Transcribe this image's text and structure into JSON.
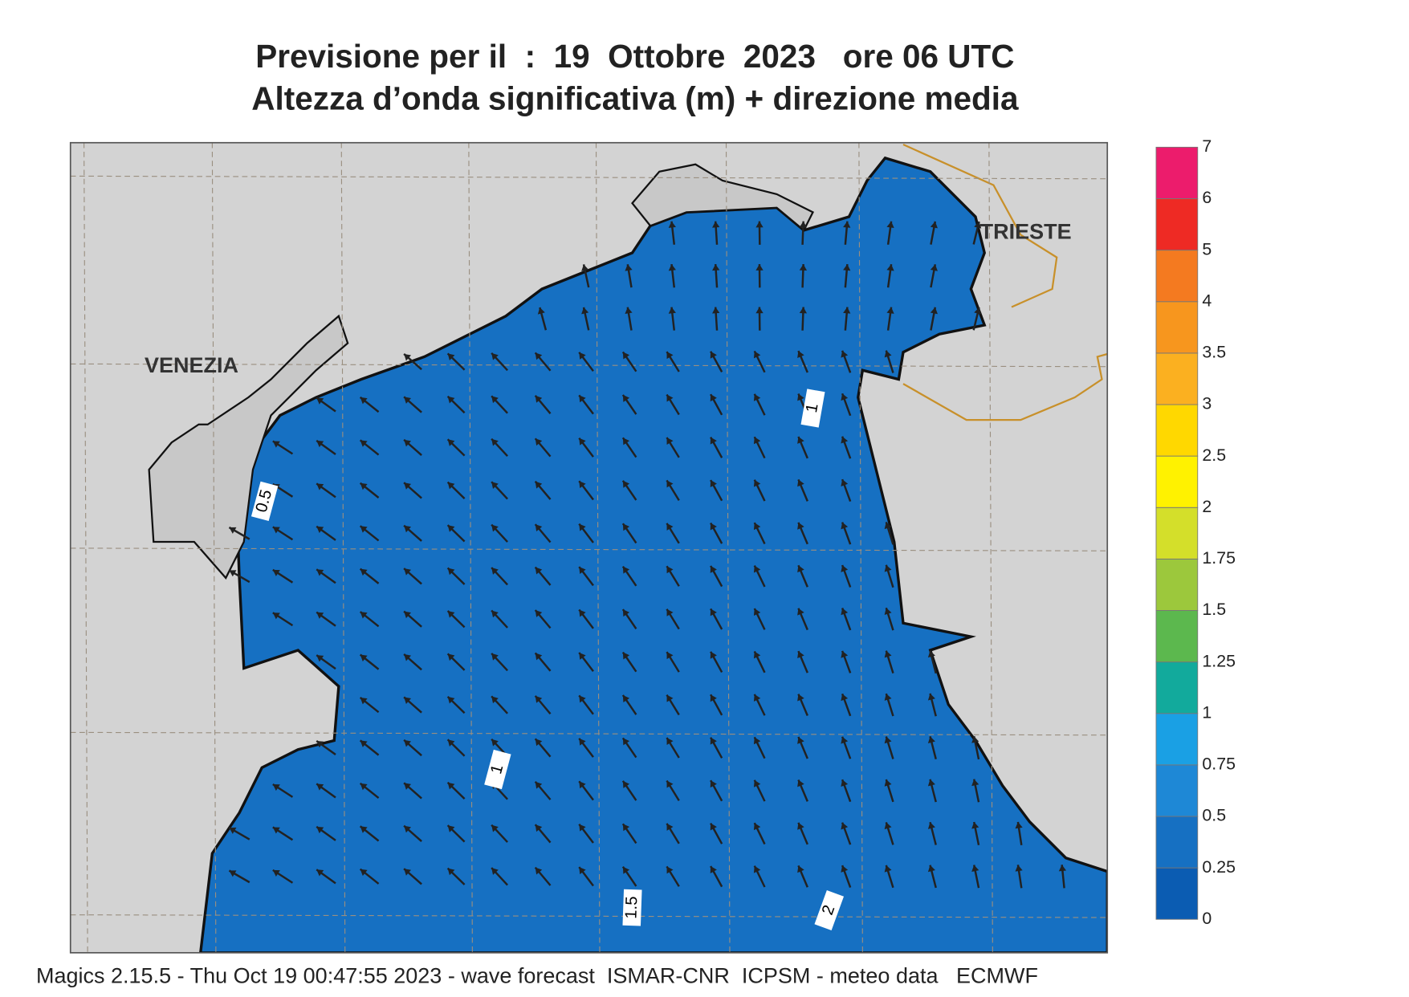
{
  "header": {
    "title_line1": "Previsione per il  :  19  Ottobre  2023   ore 06 UTC",
    "title_line2": "Altezza d’onda significativa (m) + direzione media"
  },
  "map": {
    "places": [
      "VENEZIA",
      "TRIESTE"
    ],
    "contour_labels": [
      "0.5",
      "1",
      "1",
      "1.5",
      "2"
    ]
  },
  "legend": {
    "levels": [
      0,
      0.25,
      0.5,
      0.75,
      1,
      1.25,
      1.5,
      1.75,
      2,
      2.5,
      3,
      3.5,
      4,
      5,
      6,
      7
    ],
    "colors": [
      "#0b5cb2",
      "#1670c2",
      "#1e88d6",
      "#1aa0e4",
      "#12aa9c",
      "#5cb84e",
      "#9cc83c",
      "#d4df2a",
      "#fff200",
      "#ffd800",
      "#fbb020",
      "#f7961e",
      "#f47a20",
      "#ee2a24",
      "#ec1c6c"
    ]
  },
  "footer": "Magics 2.15.5 - Thu Oct 19 00:47:55 2023 - wave forecast  ISMAR-CNR  ICPSM - meteo data   ECMWF"
}
